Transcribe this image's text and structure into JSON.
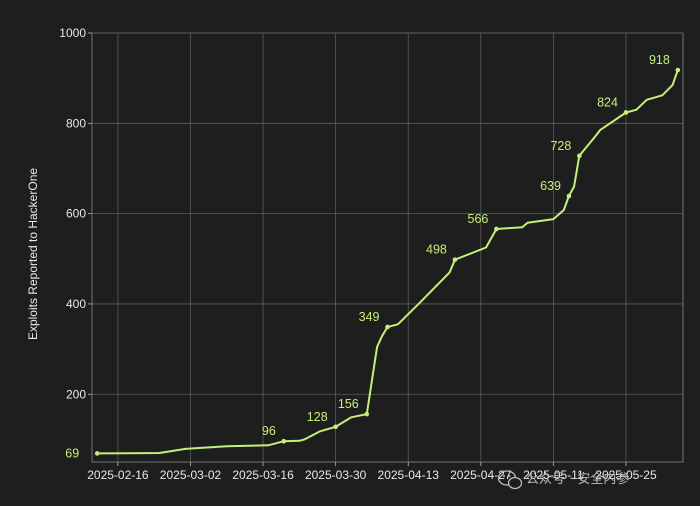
{
  "chart_data": {
    "type": "line",
    "title": "",
    "xlabel": "",
    "ylabel": "Exploits Reported to HackerOne",
    "ylim": [
      50,
      1000
    ],
    "y_ticks": [
      200,
      400,
      600,
      800,
      1000
    ],
    "x_ticks": [
      "2025-02-16",
      "2025-03-02",
      "2025-03-16",
      "2025-03-30",
      "2025-04-13",
      "2025-04-27",
      "2025-05-11",
      "2025-05-25"
    ],
    "grid": true,
    "series": [
      {
        "color": "#c5f07a",
        "points": [
          {
            "x": "2025-02-12",
            "y": 69
          },
          {
            "x": "2025-02-24",
            "y": 70
          },
          {
            "x": "2025-03-01",
            "y": 79
          },
          {
            "x": "2025-03-09",
            "y": 85
          },
          {
            "x": "2025-03-17",
            "y": 87
          },
          {
            "x": "2025-03-20",
            "y": 96
          },
          {
            "x": "2025-03-23",
            "y": 97
          },
          {
            "x": "2025-03-24",
            "y": 100
          },
          {
            "x": "2025-03-27",
            "y": 118
          },
          {
            "x": "2025-03-30",
            "y": 128
          },
          {
            "x": "2025-03-31",
            "y": 135
          },
          {
            "x": "2025-04-02",
            "y": 149
          },
          {
            "x": "2025-04-05",
            "y": 156
          },
          {
            "x": "2025-04-06",
            "y": 230
          },
          {
            "x": "2025-04-07",
            "y": 305
          },
          {
            "x": "2025-04-08",
            "y": 330
          },
          {
            "x": "2025-04-09",
            "y": 349
          },
          {
            "x": "2025-04-11",
            "y": 355
          },
          {
            "x": "2025-04-15",
            "y": 400
          },
          {
            "x": "2025-04-21",
            "y": 470
          },
          {
            "x": "2025-04-22",
            "y": 498
          },
          {
            "x": "2025-04-28",
            "y": 525
          },
          {
            "x": "2025-04-30",
            "y": 566
          },
          {
            "x": "2025-05-05",
            "y": 570
          },
          {
            "x": "2025-05-06",
            "y": 580
          },
          {
            "x": "2025-05-11",
            "y": 588
          },
          {
            "x": "2025-05-13",
            "y": 608
          },
          {
            "x": "2025-05-14",
            "y": 639
          },
          {
            "x": "2025-05-15",
            "y": 660
          },
          {
            "x": "2025-05-16",
            "y": 728
          },
          {
            "x": "2025-05-19",
            "y": 770
          },
          {
            "x": "2025-05-20",
            "y": 785
          },
          {
            "x": "2025-05-25",
            "y": 824
          },
          {
            "x": "2025-05-27",
            "y": 830
          },
          {
            "x": "2025-05-29",
            "y": 852
          },
          {
            "x": "2025-06-01",
            "y": 862
          },
          {
            "x": "2025-06-03",
            "y": 885
          },
          {
            "x": "2025-06-04",
            "y": 918
          }
        ]
      }
    ],
    "data_labels": [
      {
        "x": "2025-02-12",
        "y": 69,
        "text": "69"
      },
      {
        "x": "2025-03-20",
        "y": 96,
        "text": "96"
      },
      {
        "x": "2025-03-30",
        "y": 128,
        "text": "128"
      },
      {
        "x": "2025-04-05",
        "y": 156,
        "text": "156"
      },
      {
        "x": "2025-04-09",
        "y": 349,
        "text": "349"
      },
      {
        "x": "2025-04-22",
        "y": 498,
        "text": "498"
      },
      {
        "x": "2025-04-30",
        "y": 566,
        "text": "566"
      },
      {
        "x": "2025-05-14",
        "y": 639,
        "text": "639"
      },
      {
        "x": "2025-05-16",
        "y": 728,
        "text": "728"
      },
      {
        "x": "2025-05-25",
        "y": 824,
        "text": "824"
      },
      {
        "x": "2025-06-04",
        "y": 918,
        "text": "918"
      }
    ]
  },
  "watermark": {
    "text": "公众号 · 安全内参",
    "icon": "wechat-icon"
  }
}
